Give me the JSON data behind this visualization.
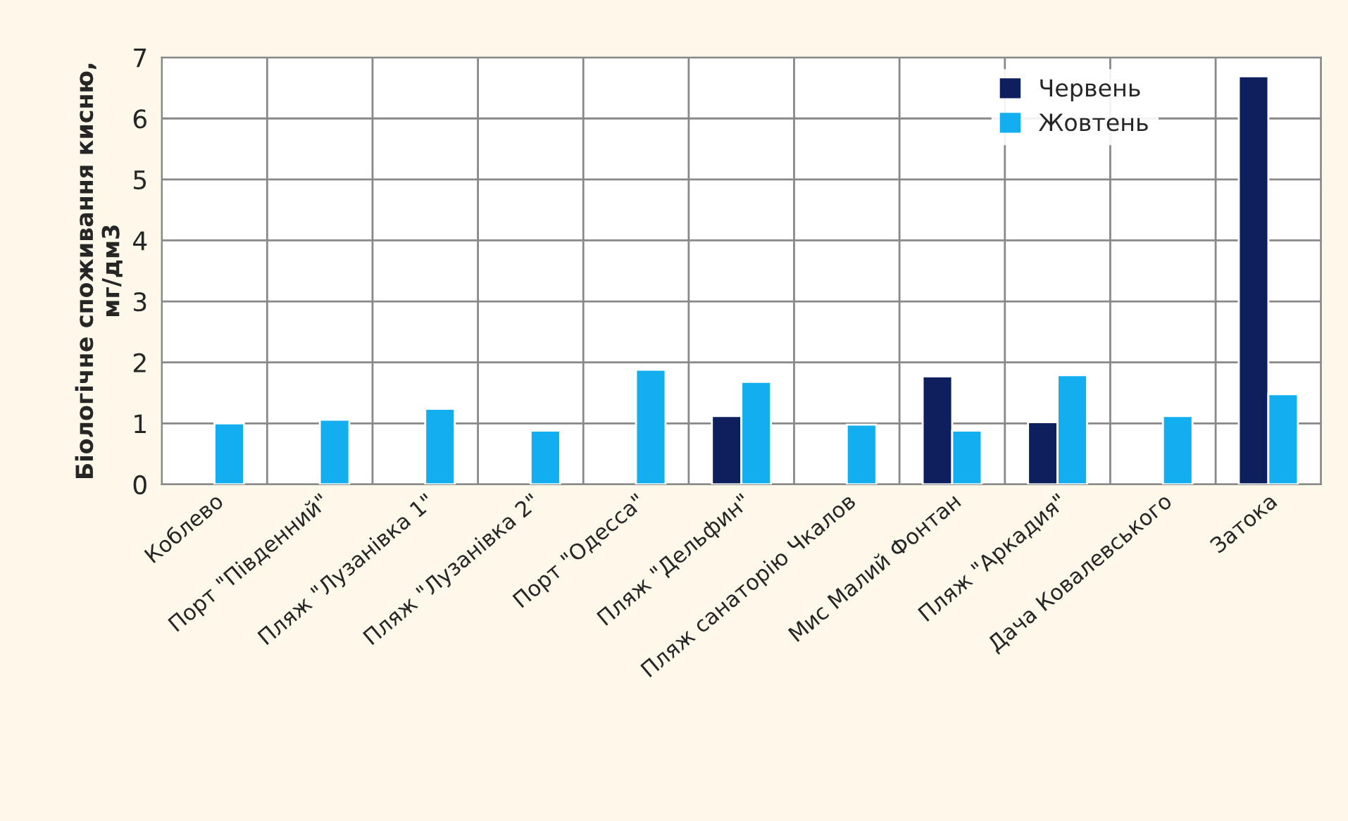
{
  "chart_data": {
    "type": "bar",
    "ylabel": "Біологічне споживання кисню,\nмг/дм3",
    "categories": [
      "Коблево",
      "Порт \"Південний\"",
      "Пляж \"Лузанівка 1\"",
      "Пляж \"Лузанівка 2\"",
      "Порт \"Одесса\"",
      "Пляж \"Дельфин\"",
      "Пляж санаторію Чкалов",
      "Мис Малий Фонтан",
      "Пляж \"Аркадия\"",
      "Дача Ковалевського",
      "Затока"
    ],
    "series": [
      {
        "name": "Червень",
        "color": "#0d1f5c",
        "values": [
          null,
          null,
          null,
          null,
          null,
          1.12,
          null,
          1.77,
          1.02,
          null,
          6.69
        ]
      },
      {
        "name": "Жовтень",
        "color": "#12aef0",
        "values": [
          1.0,
          1.06,
          1.24,
          0.88,
          1.88,
          1.68,
          0.98,
          0.88,
          1.79,
          1.12,
          1.48
        ]
      }
    ],
    "ylim": [
      0,
      7
    ],
    "yticks": [
      0,
      1,
      2,
      3,
      4,
      5,
      6,
      7
    ],
    "grid": true,
    "legend": "top right"
  }
}
